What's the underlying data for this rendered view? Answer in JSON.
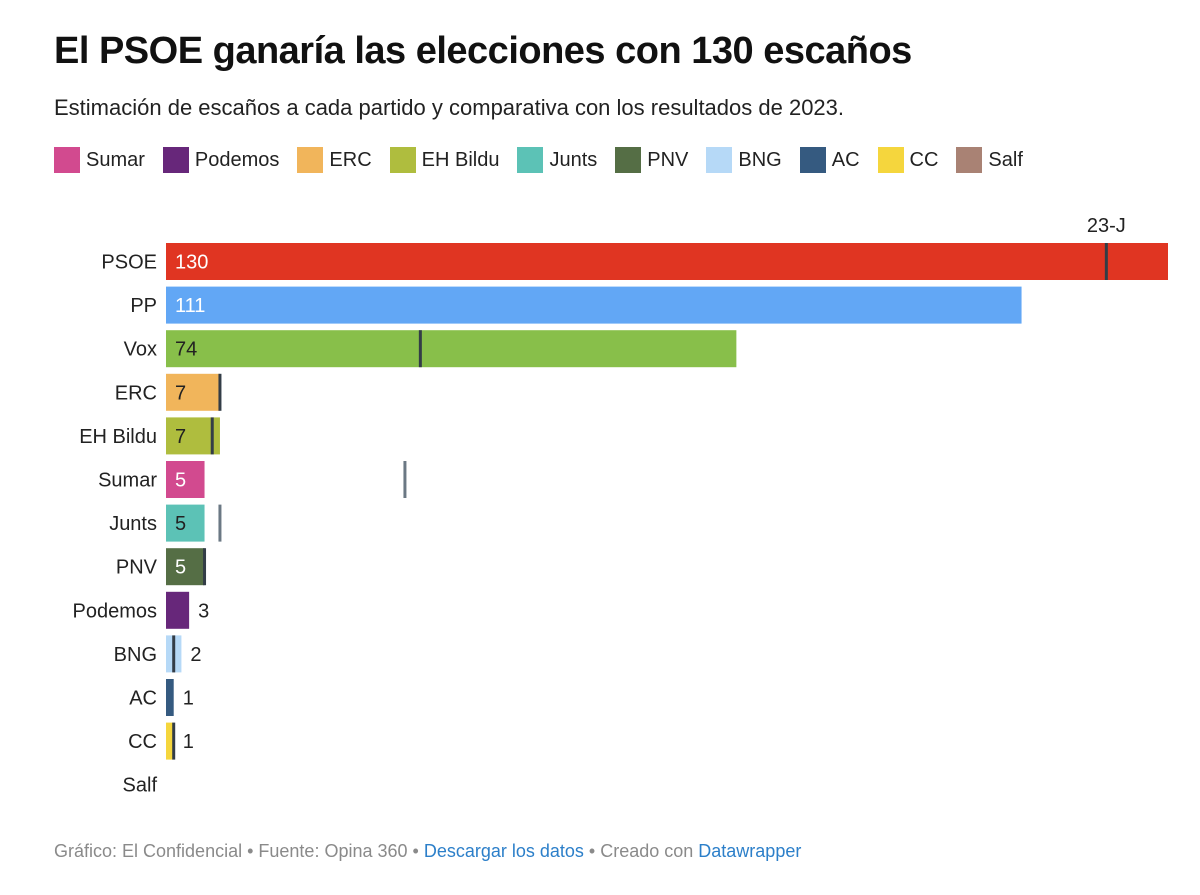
{
  "header": {
    "title": "El PSOE ganaría las elecciones con 130 escaños",
    "subtitle": "Estimación de escaños a cada partido y comparativa con los resultados de 2023."
  },
  "legend": [
    {
      "label": "Sumar",
      "color": "#d24a8f"
    },
    {
      "label": "Podemos",
      "color": "#67277a"
    },
    {
      "label": "ERC",
      "color": "#f1b55b"
    },
    {
      "label": "EH Bildu",
      "color": "#afbd3e"
    },
    {
      "label": "Junts",
      "color": "#5cc2b6"
    },
    {
      "label": "PNV",
      "color": "#556e45"
    },
    {
      "label": "BNG",
      "color": "#b6d9f7"
    },
    {
      "label": "AC",
      "color": "#355a80"
    },
    {
      "label": "CC",
      "color": "#f5d63d"
    },
    {
      "label": "Salf",
      "color": "#a98274"
    }
  ],
  "chart_data": {
    "type": "bar",
    "orientation": "horizontal",
    "title": "El PSOE ganaría las elecciones con 130 escaños",
    "subtitle": "Estimación de escaños a cada partido y comparativa con los resultados de 2023.",
    "categories": [
      "PSOE",
      "PP",
      "Vox",
      "ERC",
      "EH Bildu",
      "Sumar",
      "Junts",
      "PNV",
      "Podemos",
      "BNG",
      "AC",
      "CC",
      "Salf"
    ],
    "values": [
      130,
      111,
      74,
      7,
      7,
      5,
      5,
      5,
      3,
      2,
      1,
      1,
      0
    ],
    "value_labels": [
      "130",
      "111",
      "74",
      "7",
      "7",
      "5",
      "5",
      "5",
      "3",
      "2",
      "1",
      "1",
      ""
    ],
    "colors": [
      "#e03522",
      "#62a7f5",
      "#88bf4a",
      "#f1b55b",
      "#afbd3e",
      "#d24a8f",
      "#5cc2b6",
      "#556e45",
      "#67277a",
      "#b6d9f7",
      "#355a80",
      "#f5d63d",
      "#a98274"
    ],
    "reference_series": {
      "name": "23-J",
      "values": [
        122,
        null,
        33,
        7,
        6,
        31,
        7,
        5,
        null,
        1,
        null,
        1,
        null
      ]
    },
    "xlim": [
      0,
      130
    ],
    "grid": false,
    "legend_position": "top"
  },
  "footer": {
    "credit": "Gráfico: El Confidencial",
    "sep1": " • ",
    "source": "Fuente: Opina 360",
    "sep2": " • ",
    "download_link": "Descargar los datos",
    "sep3": " • ",
    "created_with": "Creado con ",
    "datawrapper_link": "Datawrapper"
  }
}
